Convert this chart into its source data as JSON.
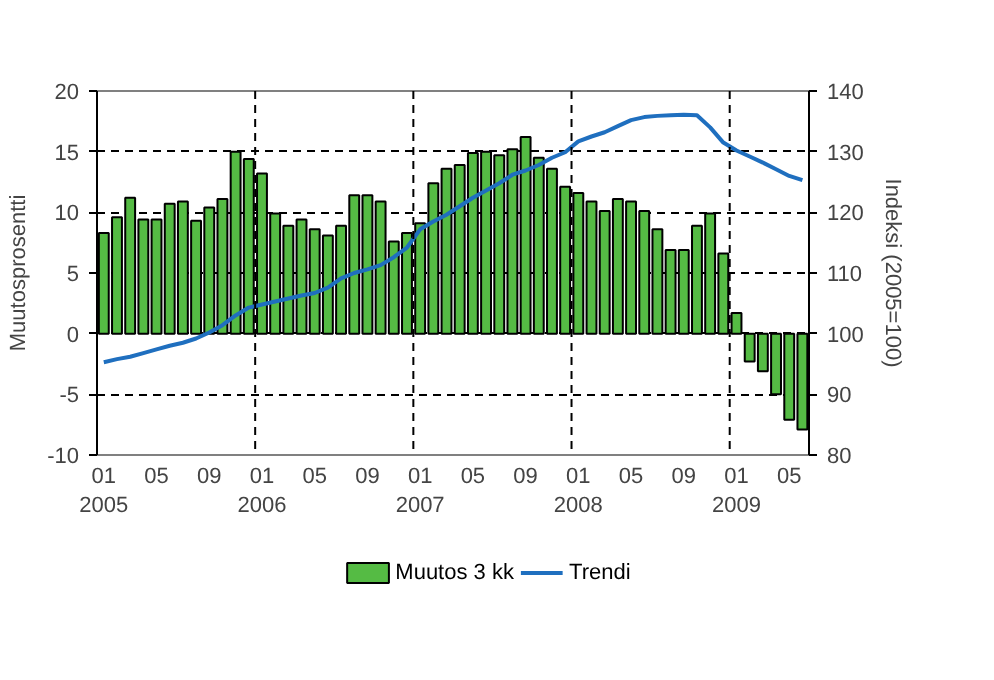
{
  "chart_data": {
    "type": "bar",
    "xlabel": null,
    "ylabel": "Muutosprosentti",
    "y2label": "Indeksi (2005=100)",
    "x": [
      "2005-01",
      "2005-02",
      "2005-03",
      "2005-04",
      "2005-05",
      "2005-06",
      "2005-07",
      "2005-08",
      "2005-09",
      "2005-10",
      "2005-11",
      "2005-12",
      "2006-01",
      "2006-02",
      "2006-03",
      "2006-04",
      "2006-05",
      "2006-06",
      "2006-07",
      "2006-08",
      "2006-09",
      "2006-10",
      "2006-11",
      "2006-12",
      "2007-01",
      "2007-02",
      "2007-03",
      "2007-04",
      "2007-05",
      "2007-06",
      "2007-07",
      "2007-08",
      "2007-09",
      "2007-10",
      "2007-11",
      "2007-12",
      "2008-01",
      "2008-02",
      "2008-03",
      "2008-04",
      "2008-05",
      "2008-06",
      "2008-07",
      "2008-08",
      "2008-09",
      "2008-10",
      "2008-11",
      "2008-12",
      "2009-01",
      "2009-02",
      "2009-03",
      "2009-04",
      "2009-05",
      "2009-06"
    ],
    "series": [
      {
        "name": "Muutos 3 kk",
        "color": "#55bb44",
        "values": [
          8.3,
          9.6,
          11.2,
          9.4,
          9.4,
          10.7,
          10.9,
          9.3,
          10.4,
          11.1,
          15.0,
          14.4,
          13.2,
          9.9,
          8.9,
          9.4,
          8.6,
          8.1,
          8.9,
          11.4,
          11.4,
          10.9,
          7.6,
          8.3,
          9.1,
          12.4,
          13.6,
          13.9,
          14.9,
          15.0,
          14.7,
          15.2,
          16.2,
          14.5,
          13.6,
          12.1,
          11.6,
          10.9,
          10.1,
          11.1,
          10.9,
          10.1,
          8.6,
          6.9,
          6.9,
          8.9,
          9.9,
          6.6,
          1.7,
          -2.3,
          -3.1,
          -5.0,
          -7.1,
          -7.9
        ]
      },
      {
        "name": "Trendi",
        "type": "line",
        "axis": "y2",
        "color": "#1f6fbf",
        "values": [
          95.3,
          95.8,
          96.2,
          96.8,
          97.4,
          98.0,
          98.5,
          99.2,
          100.2,
          101.4,
          103.0,
          104.3,
          104.8,
          105.3,
          105.8,
          106.3,
          106.7,
          107.6,
          109.1,
          110.0,
          110.6,
          111.3,
          112.6,
          114.2,
          117.2,
          118.5,
          119.6,
          121.0,
          122.4,
          123.6,
          124.8,
          126.2,
          126.9,
          127.8,
          129.0,
          129.9,
          131.7,
          132.5,
          133.2,
          134.2,
          135.2,
          135.7,
          135.9,
          136.0,
          136.1,
          136.0,
          134.0,
          131.5,
          130.2,
          129.2,
          128.2,
          127.1,
          126.0,
          125.3
        ]
      }
    ],
    "xlim": [
      "2004-12-16",
      "2009-06-16"
    ],
    "xticks": [
      {
        "value": "2005-01",
        "label": "01\n2005"
      },
      {
        "value": "2005-05",
        "label": "05"
      },
      {
        "value": "2005-09",
        "label": "09"
      },
      {
        "value": "2006-01",
        "label": "01\n2006"
      },
      {
        "value": "2006-05",
        "label": "05"
      },
      {
        "value": "2006-09",
        "label": "09"
      },
      {
        "value": "2007-01",
        "label": "01\n2007"
      },
      {
        "value": "2007-05",
        "label": "05"
      },
      {
        "value": "2007-09",
        "label": "09"
      },
      {
        "value": "2008-01",
        "label": "01\n2008"
      },
      {
        "value": "2008-05",
        "label": "05"
      },
      {
        "value": "2008-09",
        "label": "09"
      },
      {
        "value": "2009-01",
        "label": "01\n2009"
      },
      {
        "value": "2009-05",
        "label": "05"
      }
    ],
    "ylim": [
      -10,
      20
    ],
    "yticks": [
      -10,
      -5,
      0,
      5,
      10,
      15,
      20
    ],
    "y2lim": [
      80,
      140
    ],
    "y2ticks": [
      80,
      90,
      100,
      110,
      120,
      130,
      140
    ],
    "grid": "y",
    "legend": "bottom",
    "ref_lines": [
      {
        "axis": "x",
        "value": "2005-12-16",
        "line_style": "dashed",
        "color": "#000000"
      },
      {
        "axis": "x",
        "value": "2006-12-16",
        "line_style": "dashed",
        "color": "#000000"
      },
      {
        "axis": "x",
        "value": "2007-12-16",
        "line_style": "dashed",
        "color": "#000000"
      },
      {
        "axis": "x",
        "value": "2008-12-16",
        "line_style": "dashed",
        "color": "#000000"
      }
    ]
  }
}
